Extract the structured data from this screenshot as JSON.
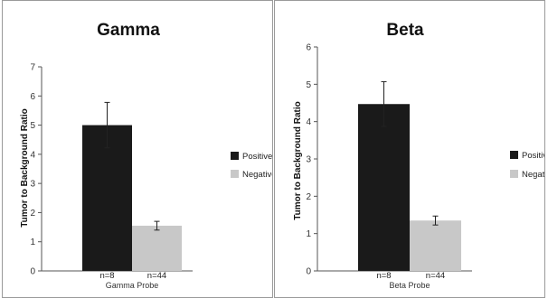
{
  "chart_data": [
    {
      "type": "bar",
      "title": "Gamma",
      "ylabel": "Tumor to Background Ratio",
      "xlabel": "Gamma Probe",
      "ylim": [
        0,
        7
      ],
      "yticks": [
        "0",
        "1",
        "2",
        "3",
        "4",
        "5",
        "6",
        "7"
      ],
      "categories": [
        "n=8",
        "n=44"
      ],
      "series": [
        {
          "name": "Positive",
          "value": 5.0,
          "error": 0.78,
          "color": "#1a1a1a"
        },
        {
          "name": "Negative",
          "value": 1.55,
          "error": 0.15,
          "color": "#c8c8c8"
        }
      ],
      "legend": "right",
      "grid": false
    },
    {
      "type": "bar",
      "title": "Beta",
      "ylabel": "Tumor to Background Ratio",
      "xlabel": "Beta Probe",
      "ylim": [
        0,
        6
      ],
      "yticks": [
        "0",
        "1",
        "2",
        "3",
        "4",
        "5",
        "6"
      ],
      "categories": [
        "n=8",
        "n=44"
      ],
      "series": [
        {
          "name": "Positive",
          "value": 4.47,
          "error": 0.6,
          "color": "#1a1a1a"
        },
        {
          "name": "Negative",
          "value": 1.35,
          "error": 0.12,
          "color": "#c8c8c8"
        }
      ],
      "legend": "right",
      "grid": false
    }
  ]
}
